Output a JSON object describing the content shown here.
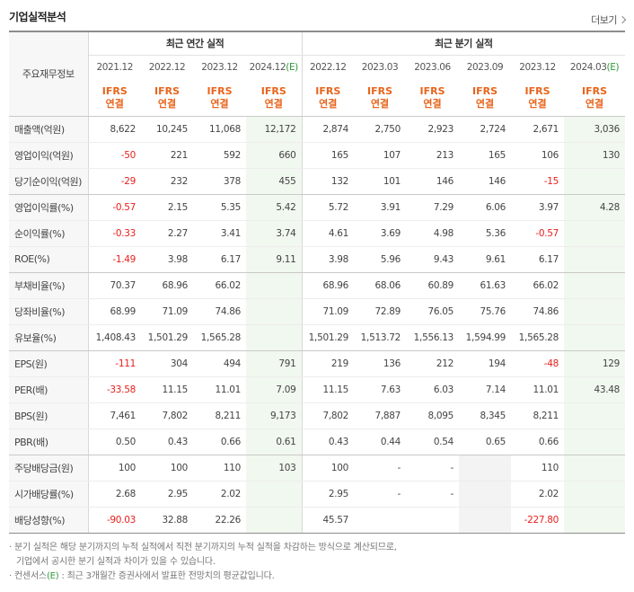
{
  "header": {
    "title": "기업실적분석",
    "more_label": "더보기"
  },
  "table": {
    "corner_label": "주요재무정보",
    "annual_group_label": "최근 연간 실적",
    "quarter_group_label": "최근 분기 실적",
    "ifrs_label_top": "IFRS",
    "ifrs_label_bottom": "연결",
    "annual_periods": [
      "2021.12",
      "2022.12",
      "2023.12",
      "2024.12(E)"
    ],
    "quarter_periods": [
      "2022.12",
      "2023.03",
      "2023.06",
      "2023.09",
      "2023.12",
      "2024.03(E)"
    ],
    "rows": [
      {
        "label": "매출액(억원)",
        "values": [
          "8,622",
          "10,245",
          "11,068",
          "12,172",
          "2,874",
          "2,750",
          "2,923",
          "2,724",
          "2,671",
          "3,036"
        ]
      },
      {
        "label": "영업이익(억원)",
        "values": [
          "-50",
          "221",
          "592",
          "660",
          "165",
          "107",
          "213",
          "165",
          "106",
          "130"
        ]
      },
      {
        "label": "당기순이익(억원)",
        "values": [
          "-29",
          "232",
          "378",
          "455",
          "132",
          "101",
          "146",
          "146",
          "-15",
          ""
        ]
      },
      {
        "label": "영업이익률(%)",
        "values": [
          "-0.57",
          "2.15",
          "5.35",
          "5.42",
          "5.72",
          "3.91",
          "7.29",
          "6.06",
          "3.97",
          "4.28"
        ]
      },
      {
        "label": "순이익률(%)",
        "values": [
          "-0.33",
          "2.27",
          "3.41",
          "3.74",
          "4.61",
          "3.69",
          "4.98",
          "5.36",
          "-0.57",
          ""
        ]
      },
      {
        "label": "ROE(%)",
        "values": [
          "-1.49",
          "3.98",
          "6.17",
          "9.11",
          "3.98",
          "5.96",
          "9.43",
          "9.61",
          "6.17",
          ""
        ]
      },
      {
        "label": "부채비율(%)",
        "values": [
          "70.37",
          "68.96",
          "66.02",
          "",
          "68.96",
          "68.06",
          "60.89",
          "61.63",
          "66.02",
          ""
        ]
      },
      {
        "label": "당좌비율(%)",
        "values": [
          "68.99",
          "71.09",
          "74.86",
          "",
          "71.09",
          "72.89",
          "76.05",
          "75.76",
          "74.86",
          ""
        ]
      },
      {
        "label": "유보율(%)",
        "values": [
          "1,408.43",
          "1,501.29",
          "1,565.28",
          "",
          "1,501.29",
          "1,513.72",
          "1,556.13",
          "1,594.99",
          "1,565.28",
          ""
        ]
      },
      {
        "label": "EPS(원)",
        "values": [
          "-111",
          "304",
          "494",
          "791",
          "219",
          "136",
          "212",
          "194",
          "-48",
          "129"
        ]
      },
      {
        "label": "PER(배)",
        "values": [
          "-33.58",
          "11.15",
          "11.01",
          "7.09",
          "11.15",
          "7.63",
          "6.03",
          "7.14",
          "11.01",
          "43.48"
        ]
      },
      {
        "label": "BPS(원)",
        "values": [
          "7,461",
          "7,802",
          "8,211",
          "9,173",
          "7,802",
          "7,887",
          "8,095",
          "8,345",
          "8,211",
          ""
        ]
      },
      {
        "label": "PBR(배)",
        "values": [
          "0.50",
          "0.43",
          "0.66",
          "0.61",
          "0.43",
          "0.44",
          "0.54",
          "0.65",
          "0.66",
          ""
        ]
      },
      {
        "label": "주당배당금(원)",
        "values": [
          "100",
          "100",
          "110",
          "103",
          "100",
          "-",
          "-",
          "",
          "110",
          ""
        ]
      },
      {
        "label": "시가배당률(%)",
        "values": [
          "2.68",
          "2.95",
          "2.02",
          "",
          "2.95",
          "-",
          "-",
          "",
          "2.02",
          ""
        ]
      },
      {
        "label": "배당성향(%)",
        "values": [
          "-90.03",
          "32.88",
          "22.26",
          "",
          "45.57",
          "",
          "",
          "",
          "-227.80",
          ""
        ]
      }
    ]
  },
  "notes": {
    "line1": "· 분기 실적은 해당 분기까지의 누적 실적에서 직전 분기까지의 누적 실적을 차감하는 방식으로 계산되므로,",
    "line2": "기업에서 공시한 분기 실적과 차이가 있을 수 있습니다.",
    "line3_pre": "· 컨센서스",
    "line3_mark": "(E)",
    "line3_post": " : 최근 3개월간 증권사에서 발표한 전망치의 평균값입니다."
  }
}
